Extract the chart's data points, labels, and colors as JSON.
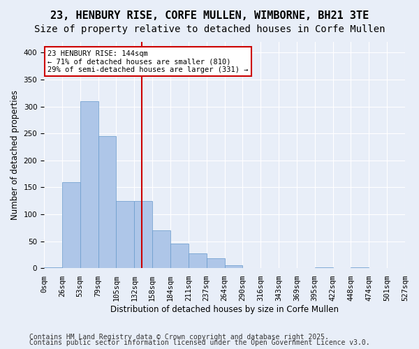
{
  "title1": "23, HENBURY RISE, CORFE MULLEN, WIMBORNE, BH21 3TE",
  "title2": "Size of property relative to detached houses in Corfe Mullen",
  "xlabel": "Distribution of detached houses by size in Corfe Mullen",
  "ylabel": "Number of detached properties",
  "bin_labels": [
    "0sqm",
    "26sqm",
    "53sqm",
    "79sqm",
    "105sqm",
    "132sqm",
    "158sqm",
    "184sqm",
    "211sqm",
    "237sqm",
    "264sqm",
    "290sqm",
    "316sqm",
    "343sqm",
    "369sqm",
    "395sqm",
    "422sqm",
    "448sqm",
    "474sqm",
    "501sqm",
    "527sqm"
  ],
  "bin_edges": [
    0,
    26.5,
    53,
    79.5,
    106,
    132.5,
    159,
    185.5,
    212,
    238.5,
    265,
    291.5,
    318,
    344.5,
    371,
    397.5,
    424,
    450.5,
    477,
    503.5,
    530,
    556.5
  ],
  "bar_values": [
    2,
    160,
    310,
    245,
    125,
    125,
    70,
    45,
    28,
    18,
    5,
    0,
    0,
    0,
    0,
    1,
    0,
    1,
    0,
    0,
    0
  ],
  "bar_color": "#aec6e8",
  "bar_edge_color": "#6699cc",
  "property_size": 144,
  "vline_color": "#cc0000",
  "annotation_text": "23 HENBURY RISE: 144sqm\n← 71% of detached houses are smaller (810)\n29% of semi-detached houses are larger (331) →",
  "annotation_box_color": "#ffffff",
  "annotation_box_edge": "#cc0000",
  "ylim": [
    0,
    420
  ],
  "yticks": [
    0,
    50,
    100,
    150,
    200,
    250,
    300,
    350,
    400
  ],
  "footer1": "Contains HM Land Registry data © Crown copyright and database right 2025.",
  "footer2": "Contains public sector information licensed under the Open Government Licence v3.0.",
  "bg_color": "#e8eef8",
  "plot_bg_color": "#e8eef8",
  "title_fontsize": 11,
  "subtitle_fontsize": 10,
  "axis_fontsize": 8.5,
  "tick_fontsize": 7.5,
  "footer_fontsize": 7
}
